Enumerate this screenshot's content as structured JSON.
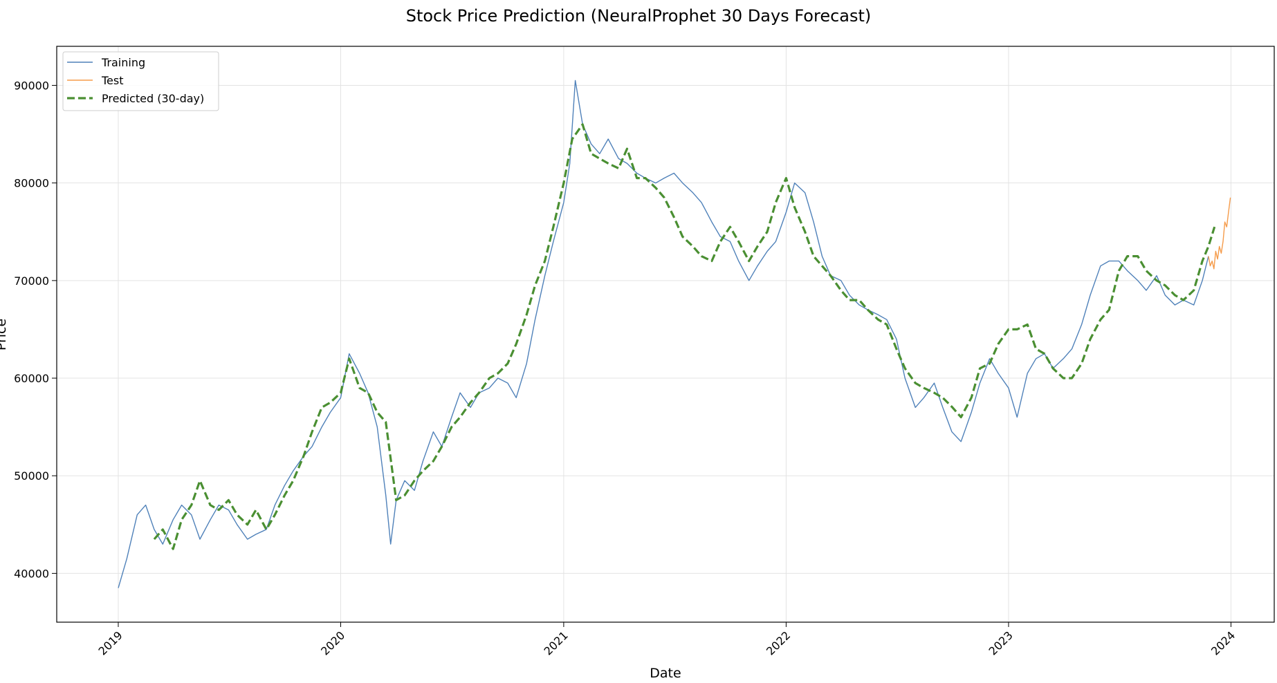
{
  "chart_data": {
    "type": "line",
    "title": "Stock Price Prediction (NeuralProphet 30 Days Forecast)",
    "xlabel": "Date",
    "ylabel": "Price",
    "xlim": [
      "2018-09-22",
      "2024-03-12"
    ],
    "ylim": [
      35000,
      94000
    ],
    "x_ticks": [
      "2019-01-01",
      "2020-01-01",
      "2021-01-01",
      "2022-01-01",
      "2023-01-01",
      "2024-01-01"
    ],
    "x_tick_labels": [
      "2019",
      "2020",
      "2021",
      "2022",
      "2023",
      "2024"
    ],
    "y_ticks": [
      40000,
      50000,
      60000,
      70000,
      80000,
      90000
    ],
    "y_tick_labels": [
      "40000",
      "50000",
      "60000",
      "70000",
      "80000",
      "90000"
    ],
    "grid": true,
    "legend_position": "top-left",
    "series": [
      {
        "name": "Training",
        "color": "#4f81b9",
        "style": "solid",
        "x": [
          "2019-01-01",
          "2019-01-15",
          "2019-02-01",
          "2019-02-15",
          "2019-03-01",
          "2019-03-15",
          "2019-04-01",
          "2019-04-15",
          "2019-05-01",
          "2019-05-15",
          "2019-06-01",
          "2019-06-15",
          "2019-07-01",
          "2019-07-15",
          "2019-08-01",
          "2019-08-15",
          "2019-09-01",
          "2019-09-15",
          "2019-10-01",
          "2019-10-15",
          "2019-11-01",
          "2019-11-15",
          "2019-12-01",
          "2019-12-15",
          "2020-01-01",
          "2020-01-15",
          "2020-02-01",
          "2020-02-15",
          "2020-03-01",
          "2020-03-15",
          "2020-03-23",
          "2020-04-01",
          "2020-04-15",
          "2020-05-01",
          "2020-05-15",
          "2020-06-01",
          "2020-06-15",
          "2020-07-01",
          "2020-07-15",
          "2020-08-01",
          "2020-08-15",
          "2020-09-01",
          "2020-09-15",
          "2020-10-01",
          "2020-10-15",
          "2020-11-01",
          "2020-11-15",
          "2020-12-01",
          "2020-12-15",
          "2021-01-01",
          "2021-01-11",
          "2021-01-20",
          "2021-02-01",
          "2021-02-15",
          "2021-03-01",
          "2021-03-15",
          "2021-04-01",
          "2021-04-15",
          "2021-05-01",
          "2021-05-15",
          "2021-06-01",
          "2021-06-15",
          "2021-07-01",
          "2021-07-15",
          "2021-08-01",
          "2021-08-15",
          "2021-09-01",
          "2021-09-15",
          "2021-10-01",
          "2021-10-15",
          "2021-11-01",
          "2021-11-15",
          "2021-12-01",
          "2021-12-15",
          "2022-01-01",
          "2022-01-15",
          "2022-02-01",
          "2022-02-15",
          "2022-03-01",
          "2022-03-15",
          "2022-04-01",
          "2022-04-15",
          "2022-05-01",
          "2022-05-15",
          "2022-06-01",
          "2022-06-15",
          "2022-07-01",
          "2022-07-15",
          "2022-08-01",
          "2022-08-15",
          "2022-09-01",
          "2022-09-15",
          "2022-09-30",
          "2022-10-15",
          "2022-11-01",
          "2022-11-15",
          "2022-12-01",
          "2022-12-15",
          "2023-01-01",
          "2023-01-15",
          "2023-02-01",
          "2023-02-15",
          "2023-03-01",
          "2023-03-15",
          "2023-04-01",
          "2023-04-15",
          "2023-05-01",
          "2023-05-15",
          "2023-06-01",
          "2023-06-15",
          "2023-07-01",
          "2023-07-15",
          "2023-08-01",
          "2023-08-15",
          "2023-09-01",
          "2023-09-15",
          "2023-10-01",
          "2023-10-15",
          "2023-11-01",
          "2023-11-15",
          "2023-11-25"
        ],
        "values": [
          38500,
          41500,
          46000,
          47000,
          44500,
          43000,
          45500,
          47000,
          46000,
          43500,
          45500,
          47000,
          46500,
          45000,
          43500,
          44000,
          44500,
          47000,
          49000,
          50500,
          52000,
          53000,
          55000,
          56500,
          58000,
          62500,
          60500,
          58500,
          55000,
          48000,
          43000,
          47500,
          49500,
          48500,
          51500,
          54500,
          53000,
          56000,
          58500,
          57000,
          58500,
          59000,
          60000,
          59500,
          58000,
          61500,
          66000,
          70500,
          74000,
          78000,
          82000,
          90500,
          86000,
          84000,
          83000,
          84500,
          82500,
          82000,
          81000,
          80500,
          80000,
          80500,
          81000,
          80000,
          79000,
          78000,
          76000,
          74500,
          74000,
          72000,
          70000,
          71500,
          73000,
          74000,
          77000,
          80000,
          79000,
          76000,
          72500,
          70500,
          70000,
          68500,
          67500,
          67000,
          66500,
          66000,
          64000,
          60000,
          57000,
          58000,
          59500,
          57000,
          54500,
          53500,
          56500,
          59500,
          62000,
          60500,
          59000,
          56000,
          60500,
          62000,
          62500,
          61000,
          62000,
          63000,
          65500,
          68500,
          71500,
          72000,
          72000,
          71000,
          70000,
          69000,
          70500,
          68500,
          67500,
          68000,
          67500,
          70000,
          72500
        ]
      },
      {
        "name": "Test",
        "color": "#f59b4a",
        "style": "solid",
        "x": [
          "2023-11-25",
          "2023-11-28",
          "2023-12-01",
          "2023-12-04",
          "2023-12-07",
          "2023-12-10",
          "2023-12-13",
          "2023-12-16",
          "2023-12-19",
          "2023-12-22",
          "2023-12-25",
          "2023-12-28",
          "2023-12-31"
        ],
        "values": [
          72500,
          71500,
          72000,
          71200,
          73000,
          72200,
          73500,
          72800,
          74000,
          76000,
          75500,
          77000,
          78500
        ]
      },
      {
        "name": "Predicted (30-day)",
        "color": "#4a8f32",
        "style": "dashed",
        "x": [
          "2019-03-01",
          "2019-03-15",
          "2019-04-01",
          "2019-04-15",
          "2019-05-01",
          "2019-05-15",
          "2019-06-01",
          "2019-06-15",
          "2019-07-01",
          "2019-07-15",
          "2019-08-01",
          "2019-08-15",
          "2019-09-01",
          "2019-09-15",
          "2019-10-01",
          "2019-10-15",
          "2019-11-01",
          "2019-11-15",
          "2019-12-01",
          "2019-12-15",
          "2020-01-01",
          "2020-01-15",
          "2020-02-01",
          "2020-02-15",
          "2020-03-01",
          "2020-03-15",
          "2020-04-01",
          "2020-04-15",
          "2020-05-01",
          "2020-05-15",
          "2020-06-01",
          "2020-06-15",
          "2020-07-01",
          "2020-07-15",
          "2020-08-01",
          "2020-08-15",
          "2020-09-01",
          "2020-09-15",
          "2020-10-01",
          "2020-10-15",
          "2020-11-01",
          "2020-11-15",
          "2020-12-01",
          "2020-12-15",
          "2021-01-01",
          "2021-01-15",
          "2021-02-01",
          "2021-02-15",
          "2021-03-01",
          "2021-03-15",
          "2021-04-01",
          "2021-04-15",
          "2021-05-01",
          "2021-05-15",
          "2021-06-01",
          "2021-06-15",
          "2021-07-01",
          "2021-07-15",
          "2021-08-01",
          "2021-08-15",
          "2021-09-01",
          "2021-09-15",
          "2021-10-01",
          "2021-10-15",
          "2021-11-01",
          "2021-11-15",
          "2021-12-01",
          "2021-12-15",
          "2022-01-01",
          "2022-01-15",
          "2022-02-01",
          "2022-02-15",
          "2022-03-01",
          "2022-03-15",
          "2022-04-01",
          "2022-04-15",
          "2022-05-01",
          "2022-05-15",
          "2022-06-01",
          "2022-06-15",
          "2022-07-01",
          "2022-07-15",
          "2022-08-01",
          "2022-08-15",
          "2022-09-01",
          "2022-09-15",
          "2022-10-01",
          "2022-10-15",
          "2022-11-01",
          "2022-11-15",
          "2022-12-01",
          "2022-12-15",
          "2023-01-01",
          "2023-01-15",
          "2023-02-01",
          "2023-02-15",
          "2023-03-01",
          "2023-03-15",
          "2023-04-01",
          "2023-04-15",
          "2023-05-01",
          "2023-05-15",
          "2023-06-01",
          "2023-06-15",
          "2023-07-01",
          "2023-07-15",
          "2023-08-01",
          "2023-08-15",
          "2023-09-01",
          "2023-09-15",
          "2023-10-01",
          "2023-10-15",
          "2023-11-01",
          "2023-11-15",
          "2023-11-25",
          "2023-12-05"
        ],
        "values": [
          43500,
          44500,
          42500,
          45500,
          47000,
          49500,
          47000,
          46500,
          47500,
          46000,
          45000,
          46500,
          44500,
          46000,
          48000,
          49500,
          52000,
          54500,
          57000,
          57500,
          58500,
          62000,
          59000,
          58500,
          56500,
          55500,
          47500,
          48000,
          49500,
          50500,
          51500,
          53000,
          55000,
          56000,
          57500,
          58500,
          60000,
          60500,
          61500,
          63500,
          66500,
          69500,
          72000,
          75500,
          80000,
          84500,
          86000,
          83000,
          82500,
          82000,
          81500,
          83500,
          80500,
          80500,
          79500,
          78500,
          76500,
          74500,
          73500,
          72500,
          72000,
          74000,
          75500,
          74000,
          72000,
          73500,
          75000,
          78000,
          80500,
          77500,
          75000,
          72500,
          71500,
          70500,
          69000,
          68000,
          68000,
          67000,
          66000,
          65500,
          63000,
          61000,
          59500,
          59000,
          58500,
          58000,
          57000,
          56000,
          58000,
          61000,
          61500,
          63500,
          65000,
          65000,
          65500,
          63000,
          62500,
          61000,
          60000,
          60000,
          61500,
          64000,
          66000,
          67000,
          71000,
          72500,
          72500,
          71000,
          70000,
          69500,
          68500,
          68000,
          69000,
          72000,
          73500,
          75500
        ]
      }
    ]
  }
}
